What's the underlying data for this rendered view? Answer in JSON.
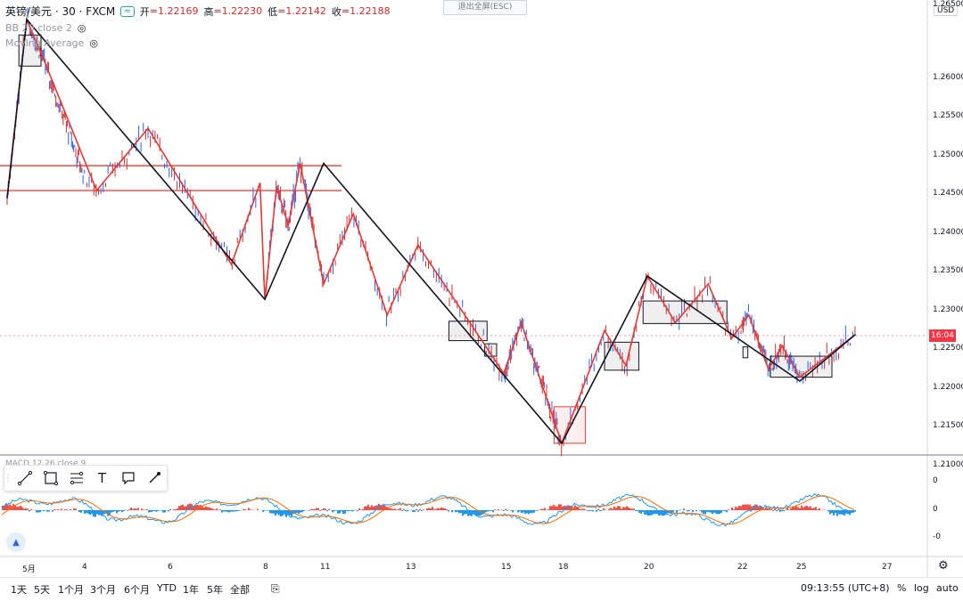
{
  "header": {
    "symbol": "英镑/美元 · 30 · FXCM",
    "badge": "≈",
    "open_label": "开",
    "open_value": "=1.22169",
    "high_label": "高",
    "high_value": "=1.22230",
    "low_label": "低",
    "low_value": "=1.22142",
    "close_label": "收",
    "close_value": "=1.22188"
  },
  "indicators": [
    {
      "name": "BB 20 close 2",
      "icon": "eye-icon"
    },
    {
      "name": "Moving Average",
      "icon": "eye-icon"
    }
  ],
  "macd_legend": "MACD 12 26 close 9",
  "exit_fullscreen": "退出全屏(ESC)",
  "price_axis": {
    "currency": "USD",
    "labels": [
      "1.26500",
      "1.26000",
      "1.25500",
      "1.25000",
      "1.24500",
      "1.24000",
      "1.23500",
      "1.23000",
      "1.22500",
      "1.22000",
      "1.21500",
      "1.21000"
    ],
    "current_time_tag": "16:04",
    "current_tag_color": "#f23645"
  },
  "macd_axis": {
    "labels": [
      "0",
      "0",
      "-0"
    ]
  },
  "time_axis": {
    "labels": [
      "5月",
      "4",
      "6",
      "8",
      "11",
      "13",
      "15",
      "18",
      "20",
      "22",
      "25",
      "27"
    ]
  },
  "drawing_toolbar": {
    "tools": [
      {
        "name": "trend-line-icon"
      },
      {
        "name": "rectangle-icon"
      },
      {
        "name": "fib-icon"
      },
      {
        "name": "text-icon",
        "glyph": "T"
      },
      {
        "name": "callout-icon"
      },
      {
        "name": "brush-icon"
      }
    ]
  },
  "bottom_bar": {
    "ranges": [
      "1天",
      "5天",
      "1个月",
      "3个月",
      "6个月",
      "YTD",
      "1年",
      "5年",
      "全部"
    ],
    "clock": "09:13:55 (UTC+8)",
    "percent": "%",
    "log": "log",
    "auto": "auto"
  },
  "colors": {
    "up": "#2962ff",
    "down": "#d32f2f",
    "zigzag_red": "#e53935",
    "zigzag_black": "#131722",
    "macd_pos": "#f0524a",
    "macd_neg": "#2196f3"
  },
  "chart_data": {
    "type": "candlestick",
    "title": "",
    "ylim": [
      1.2065,
      1.265
    ],
    "black_zigzag": [
      [
        1.2395
      ],
      [
        1.2625
      ],
      [
        1.2265
      ],
      [
        1.244
      ],
      [
        1.208
      ],
      [
        1.2295
      ],
      [
        1.216
      ],
      [
        1.222
      ]
    ],
    "red_zigzag": [
      1.2395,
      1.2625,
      1.2585,
      1.2405,
      1.2485,
      1.231,
      1.2415,
      1.2265,
      1.241,
      1.236,
      1.244,
      1.2285,
      1.2375,
      1.2245,
      1.2335,
      1.217,
      1.2235,
      1.208,
      1.2225,
      1.218,
      1.2295,
      1.2235,
      1.2285,
      1.2215,
      1.2245,
      1.2175,
      1.2205,
      1.2165,
      1.222
    ],
    "horizontal_levels": [
      1.2437,
      1.2405
    ],
    "boxes": [
      {
        "x": [
          0.6,
          1.75
        ],
        "y": [
          1.2565,
          1.2605
        ],
        "color": "black"
      },
      {
        "x": [
          13.85,
          14.65
        ],
        "y": [
          1.2212,
          1.2237
        ],
        "color": "black"
      },
      {
        "x": [
          14.6,
          14.85
        ],
        "y": [
          1.2192,
          1.2208
        ],
        "color": "black"
      },
      {
        "x": [
          17.6,
          18.55
        ],
        "y": [
          1.208,
          1.2127
        ],
        "color": "red"
      },
      {
        "x": [
          19.0,
          19.8
        ],
        "y": [
          1.2174,
          1.221
        ],
        "color": "black"
      },
      {
        "x": [
          19.9,
          21.7
        ],
        "y": [
          1.2234,
          1.2263
        ],
        "color": "black"
      },
      {
        "x": [
          22.1,
          22.35
        ],
        "y": [
          1.219,
          1.2204
        ],
        "color": "black"
      },
      {
        "x": [
          23.5,
          25.75
        ],
        "y": [
          1.2165,
          1.2192
        ],
        "color": "black"
      }
    ]
  }
}
